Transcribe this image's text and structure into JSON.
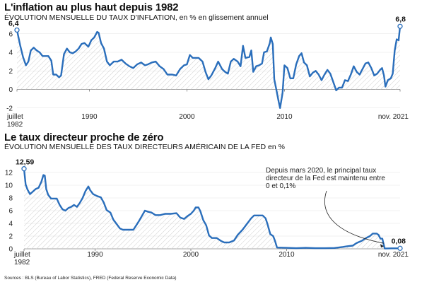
{
  "chart_data": [
    {
      "type": "line",
      "title": "L'inflation au plus haut depuis 1982",
      "subtitle_caps": "Évolution mensuelle du taux d'inflation",
      "subtitle_rest": ", en % en glissement annuel",
      "series": [
        {
          "x": [
            1982.58,
            1982.9,
            1983.2,
            1983.5,
            1983.75,
            1984.0,
            1984.3,
            1984.6,
            1984.9,
            1985.2,
            1985.5,
            1985.8,
            1986.1,
            1986.3,
            1986.6,
            1986.9,
            1987.1,
            1987.4,
            1987.7,
            1988.0,
            1988.3,
            1988.6,
            1988.9,
            1989.2,
            1989.5,
            1989.7,
            1989.9,
            1990.2,
            1990.5,
            1990.8,
            1990.95,
            1991.2,
            1991.5,
            1991.8,
            1992.1,
            1992.5,
            1992.9,
            1993.3,
            1993.7,
            1994.1,
            1994.5,
            1994.9,
            1995.3,
            1995.7,
            1996.0,
            1996.4,
            1996.8,
            1997.2,
            1997.6,
            1998.0,
            1998.5,
            1998.9,
            1999.3,
            1999.7,
            2000.0,
            2000.3,
            2000.6,
            2000.9,
            2001.2,
            2001.6,
            2001.9,
            2002.2,
            2002.5,
            2002.9,
            2003.2,
            2003.6,
            2003.9,
            2004.2,
            2004.5,
            2004.8,
            2005.2,
            2005.5,
            2005.75,
            2006.0,
            2006.4,
            2006.6,
            2006.8,
            2007.1,
            2007.4,
            2007.7,
            2007.9,
            2008.2,
            2008.5,
            2008.6,
            2008.8,
            2008.95,
            2009.2,
            2009.4,
            2009.55,
            2009.8,
            2010.0,
            2010.3,
            2010.6,
            2010.9,
            2011.2,
            2011.5,
            2011.75,
            2012.0,
            2012.3,
            2012.6,
            2012.9,
            2013.2,
            2013.5,
            2013.8,
            2014.1,
            2014.4,
            2014.7,
            2015.0,
            2015.3,
            2015.6,
            2015.9,
            2016.2,
            2016.5,
            2016.8,
            2017.1,
            2017.4,
            2017.7,
            2018.0,
            2018.3,
            2018.6,
            2018.9,
            2019.2,
            2019.5,
            2019.8,
            2020.0,
            2020.2,
            2020.35,
            2020.6,
            2020.9,
            2021.1,
            2021.3,
            2021.5,
            2021.7,
            2021.85
          ],
          "values": [
            6.4,
            4.8,
            3.5,
            2.6,
            3.0,
            4.2,
            4.5,
            4.2,
            4.0,
            3.6,
            3.6,
            3.6,
            3.1,
            1.6,
            1.6,
            1.3,
            1.5,
            3.8,
            4.4,
            4.0,
            3.9,
            4.1,
            4.4,
            4.9,
            5.0,
            4.8,
            4.6,
            5.3,
            5.6,
            6.2,
            6.1,
            5.0,
            4.4,
            3.0,
            2.6,
            3.0,
            3.0,
            3.2,
            2.8,
            2.5,
            2.3,
            2.7,
            2.9,
            2.6,
            2.7,
            2.9,
            3.0,
            2.5,
            2.2,
            1.6,
            1.6,
            1.5,
            2.2,
            2.6,
            2.7,
            3.7,
            3.4,
            3.4,
            3.4,
            3.0,
            1.9,
            1.1,
            1.5,
            2.3,
            3.0,
            2.2,
            1.9,
            1.7,
            3.0,
            3.3,
            3.0,
            2.5,
            4.7,
            3.4,
            3.5,
            4.2,
            1.9,
            2.5,
            2.6,
            2.8,
            4.0,
            4.1,
            5.0,
            5.6,
            4.9,
            1.1,
            -0.2,
            -1.3,
            -2.0,
            -0.4,
            2.6,
            2.3,
            1.2,
            1.2,
            2.7,
            3.6,
            3.9,
            2.9,
            2.6,
            1.4,
            1.8,
            2.0,
            1.6,
            1.0,
            1.6,
            2.1,
            1.7,
            0.8,
            -0.1,
            0.2,
            0.2,
            1.0,
            0.9,
            1.6,
            2.5,
            1.9,
            1.6,
            2.2,
            2.8,
            2.9,
            2.3,
            1.5,
            1.7,
            2.1,
            2.3,
            1.5,
            0.3,
            1.0,
            1.2,
            1.7,
            4.2,
            5.4,
            5.3,
            6.8
          ],
          "last_label": "6,8",
          "first_label": "6,4"
        }
      ],
      "ylim": [
        -2.4,
        7.2
      ],
      "yticks": [
        "6",
        "4",
        "2",
        "0",
        "-2"
      ],
      "xticks": [
        {
          "x": 1982.58,
          "line1": "juillet",
          "line2": "1982"
        },
        {
          "x": 1990,
          "line1": "1990",
          "line2": ""
        },
        {
          "x": 2000,
          "line1": "2000",
          "line2": ""
        },
        {
          "x": 2010,
          "line1": "2010",
          "line2": ""
        },
        {
          "x": 2021.85,
          "line1": "nov. 2021",
          "line2": ""
        }
      ],
      "xlim": [
        1982.58,
        2021.85
      ],
      "line_color": "#2a6ebb",
      "hatch_color": "#d2d2d2"
    },
    {
      "type": "line",
      "title": "Le taux directeur proche de zéro",
      "subtitle_caps": "Évolution mensuelle des taux directeurs américain de la FED",
      "subtitle_rest": " en %",
      "series": [
        {
          "x": [
            1982.58,
            1982.75,
            1982.95,
            1983.2,
            1983.5,
            1983.8,
            1984.1,
            1984.4,
            1984.6,
            1984.75,
            1984.9,
            1985.1,
            1985.4,
            1985.7,
            1986.0,
            1986.3,
            1986.6,
            1986.9,
            1987.2,
            1987.5,
            1987.8,
            1988.1,
            1988.4,
            1988.7,
            1989.0,
            1989.3,
            1989.5,
            1989.8,
            1990.2,
            1990.6,
            1990.9,
            1991.2,
            1991.6,
            1991.9,
            1992.2,
            1992.6,
            1992.9,
            1993.5,
            1994.0,
            1994.3,
            1994.6,
            1994.9,
            1995.2,
            1995.6,
            1995.9,
            1996.3,
            1996.8,
            1997.3,
            1997.9,
            1998.5,
            1998.9,
            1999.3,
            1999.7,
            2000.0,
            2000.3,
            2000.5,
            2000.8,
            2001.0,
            2001.3,
            2001.6,
            2001.9,
            2002.2,
            2002.7,
            2003.2,
            2003.5,
            2004.0,
            2004.5,
            2004.9,
            2005.4,
            2005.9,
            2006.3,
            2006.6,
            2007.0,
            2007.5,
            2007.8,
            2008.0,
            2008.3,
            2008.6,
            2008.8,
            2009.0,
            2010.0,
            2011.0,
            2012.0,
            2013.0,
            2014.0,
            2015.0,
            2015.9,
            2016.3,
            2016.9,
            2017.3,
            2017.9,
            2018.3,
            2018.7,
            2019.0,
            2019.4,
            2019.6,
            2019.8,
            2020.0,
            2020.15,
            2020.25,
            2021.0,
            2021.85
          ],
          "values": [
            12.59,
            10.1,
            9.3,
            8.6,
            9.0,
            9.4,
            9.6,
            10.6,
            11.6,
            11.5,
            9.4,
            8.5,
            7.9,
            7.9,
            7.9,
            6.9,
            6.2,
            6.0,
            6.4,
            6.6,
            6.9,
            6.6,
            7.2,
            8.0,
            9.1,
            9.8,
            9.2,
            8.6,
            8.3,
            8.1,
            7.3,
            6.1,
            5.7,
            4.6,
            4.0,
            3.2,
            3.0,
            3.0,
            3.0,
            3.7,
            4.4,
            5.2,
            6.0,
            5.8,
            5.7,
            5.3,
            5.3,
            5.5,
            5.5,
            5.6,
            4.9,
            4.7,
            5.2,
            5.5,
            6.0,
            6.5,
            6.5,
            5.9,
            4.5,
            3.7,
            2.1,
            1.7,
            1.7,
            1.2,
            1.0,
            1.0,
            1.3,
            2.2,
            3.0,
            4.0,
            4.8,
            5.25,
            5.25,
            5.25,
            4.8,
            3.9,
            2.3,
            2.0,
            1.2,
            0.2,
            0.15,
            0.1,
            0.15,
            0.1,
            0.1,
            0.13,
            0.3,
            0.4,
            0.5,
            0.9,
            1.3,
            1.7,
            2.0,
            2.4,
            2.4,
            2.2,
            1.6,
            1.6,
            0.6,
            0.05,
            0.08,
            0.08
          ],
          "last_label": "0,08",
          "first_label": "12,59"
        }
      ],
      "ylim": [
        0,
        13
      ],
      "yticks": [
        "12",
        "10",
        "8",
        "6",
        "4",
        "2",
        "0"
      ],
      "xticks": [
        {
          "x": 1982.58,
          "line1": "juillet",
          "line2": "1982"
        },
        {
          "x": 1990,
          "line1": "1990",
          "line2": ""
        },
        {
          "x": 2000,
          "line1": "2000",
          "line2": ""
        },
        {
          "x": 2010,
          "line1": "2010",
          "line2": ""
        },
        {
          "x": 2021.85,
          "line1": "nov. 2021",
          "line2": ""
        }
      ],
      "xlim": [
        1982.58,
        2021.85
      ],
      "annotation": [
        "Depuis mars 2020, le principal taux",
        "directeur de la Fed est maintenu entre",
        "0 et 0,1%"
      ],
      "line_color": "#2a6ebb",
      "hatch_color": "#d2d2d2"
    }
  ],
  "source": "Sources : BLS (Bureau of Labor Statistics), FRED (Federal Reserve Economic Data)"
}
